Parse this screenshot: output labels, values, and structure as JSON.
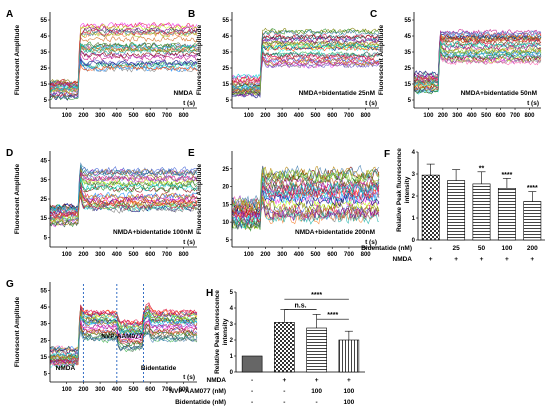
{
  "figure": {
    "panels": [
      {
        "id": "A",
        "type": "line",
        "letter": "A",
        "ylabel": "Fluorescent Amplitude",
        "xlabel": "t (s)",
        "annotation": "NMDA",
        "x_ticks": [
          "100",
          "200",
          "300",
          "400",
          "500",
          "600",
          "700",
          "800"
        ],
        "x_tick_values": [
          100,
          200,
          300,
          400,
          500,
          600,
          700,
          800
        ],
        "y_ticks": [
          "5",
          "15",
          "25",
          "35",
          "45",
          "55"
        ],
        "y_tick_values": [
          5,
          15,
          25,
          35,
          45,
          55
        ],
        "xlim": [
          0,
          880
        ],
        "ylim": [
          0,
          60
        ],
        "trace_count": 30,
        "baseline_range": [
          6,
          16
        ],
        "plateau_range": [
          22,
          52
        ],
        "step_time": 170,
        "peak_boost": 6
      },
      {
        "id": "B",
        "type": "line",
        "letter": "B",
        "ylabel": "Fluorescent Amplitude",
        "xlabel": "t (s)",
        "annotation": "NMDA+bidentatide 25nM",
        "x_ticks": [
          "100",
          "200",
          "300",
          "400",
          "500",
          "600",
          "700",
          "800"
        ],
        "x_tick_values": [
          100,
          200,
          300,
          400,
          500,
          600,
          700,
          800
        ],
        "y_ticks": [
          "5",
          "15",
          "25",
          "35",
          "45",
          "55"
        ],
        "y_tick_values": [
          5,
          15,
          25,
          35,
          45,
          55
        ],
        "xlim": [
          0,
          880
        ],
        "ylim": [
          0,
          60
        ],
        "trace_count": 30,
        "baseline_range": [
          8,
          20
        ],
        "plateau_range": [
          25,
          50
        ],
        "step_time": 170,
        "peak_boost": 6
      },
      {
        "id": "C",
        "type": "line",
        "letter": "C",
        "ylabel": "Fluorescent Amplitude",
        "xlabel": "t (s)",
        "annotation": "NMDA+bidentatide 50nM",
        "x_ticks": [
          "100",
          "200",
          "300",
          "400",
          "500",
          "600",
          "700",
          "800"
        ],
        "x_tick_values": [
          100,
          200,
          300,
          400,
          500,
          600,
          700,
          800
        ],
        "y_ticks": [
          "5",
          "15",
          "25",
          "35",
          "45",
          "55"
        ],
        "y_tick_values": [
          5,
          15,
          25,
          35,
          45,
          55
        ],
        "xlim": [
          0,
          880
        ],
        "ylim": [
          0,
          60
        ],
        "trace_count": 30,
        "baseline_range": [
          10,
          22
        ],
        "plateau_range": [
          28,
          48
        ],
        "step_time": 170,
        "peak_boost": 8
      },
      {
        "id": "D",
        "type": "line",
        "letter": "D",
        "ylabel": "Fluorescent Amplitude",
        "xlabel": "t (s)",
        "annotation": "NMDA+bidentatide 100nM",
        "x_ticks": [
          "100",
          "200",
          "300",
          "400",
          "500",
          "600",
          "700",
          "800"
        ],
        "x_tick_values": [
          100,
          200,
          300,
          400,
          500,
          600,
          700,
          800
        ],
        "y_ticks": [
          "5",
          "15",
          "25",
          "35",
          "45"
        ],
        "y_tick_values": [
          5,
          15,
          25,
          35,
          45
        ],
        "xlim": [
          0,
          880
        ],
        "ylim": [
          0,
          50
        ],
        "trace_count": 30,
        "baseline_range": [
          12,
          22
        ],
        "plateau_range": [
          18,
          40
        ],
        "step_time": 170,
        "peak_boost": 8
      },
      {
        "id": "E",
        "type": "line",
        "letter": "E",
        "ylabel": "Fluorescent Amplitude",
        "xlabel": "t (s)",
        "annotation": "NMDA+bidentatide 200nM",
        "x_ticks": [
          "100",
          "200",
          "300",
          "400",
          "500",
          "600",
          "700",
          "800"
        ],
        "x_tick_values": [
          100,
          200,
          300,
          400,
          500,
          600,
          700,
          800
        ],
        "y_ticks": [
          "5",
          "10",
          "15",
          "20",
          "25"
        ],
        "y_tick_values": [
          5,
          10,
          15,
          20,
          25
        ],
        "xlim": [
          0,
          880
        ],
        "ylim": [
          3,
          30
        ],
        "trace_count": 30,
        "baseline_range": [
          9,
          16
        ],
        "plateau_range": [
          11,
          24
        ],
        "step_time": 170,
        "peak_boost": 4
      },
      {
        "id": "G",
        "type": "line",
        "letter": "G",
        "ylabel": "Fluorescent Amplitude",
        "xlabel": "t (s)",
        "annotations": [
          "NMDA",
          "NVP-AAM077",
          "Bidentatide"
        ],
        "x_ticks": [
          "100",
          "200",
          "300",
          "400",
          "500",
          "600",
          "700",
          "800"
        ],
        "x_tick_values": [
          100,
          200,
          300,
          400,
          500,
          600,
          700,
          800
        ],
        "y_ticks": [
          "5",
          "15",
          "25",
          "35",
          "45",
          "55"
        ],
        "y_tick_values": [
          5,
          15,
          25,
          35,
          45,
          55
        ],
        "xlim": [
          0,
          880
        ],
        "ylim": [
          0,
          60
        ],
        "trace_count": 30,
        "baseline_range": [
          10,
          20
        ],
        "plateau_range": [
          25,
          42
        ],
        "step_time": 170,
        "peak_boost": 10,
        "dashed_lines_x": [
          200,
          400,
          560
        ]
      }
    ],
    "bar_F": {
      "letter": "F",
      "type": "bar",
      "ylabel": "Relative Peak fluorescence intensity",
      "y_ticks": [
        "0",
        "1",
        "2",
        "3",
        "4"
      ],
      "y_tick_values": [
        0,
        1,
        2,
        3,
        4
      ],
      "ylim": [
        0,
        4
      ],
      "categories": [
        "",
        "25",
        "50",
        "100",
        "200"
      ],
      "values": [
        2.95,
        2.7,
        2.55,
        2.35,
        1.75
      ],
      "errors": [
        0.5,
        0.5,
        0.55,
        0.45,
        0.45
      ],
      "patterns": [
        "checker",
        "hlines",
        "hlines",
        "hlines",
        "hlines"
      ],
      "significance": [
        "",
        "",
        "**",
        "****",
        "****"
      ],
      "row1_label": "Bidentatide (nM)",
      "row2_label": "NMDA",
      "row1_values": [
        "-",
        "25",
        "50",
        "100",
        "200"
      ],
      "row2_values": [
        "+",
        "+",
        "+",
        "+",
        "+"
      ]
    },
    "bar_H": {
      "letter": "H",
      "type": "bar",
      "ylabel": "Relative Peak fluorescence intensity",
      "y_ticks": [
        "0",
        "1",
        "2",
        "3",
        "4",
        "5"
      ],
      "y_tick_values": [
        0,
        1,
        2,
        3,
        4,
        5
      ],
      "ylim": [
        0,
        5
      ],
      "values": [
        1.0,
        3.1,
        2.75,
        2.0
      ],
      "errors": [
        0,
        0.8,
        0.85,
        0.55
      ],
      "patterns": [
        "solid",
        "checker",
        "hlines",
        "vlines"
      ],
      "row_labels": [
        "NMDA",
        "NVP-AAM077 (nM)",
        "Bidentatide (nM)"
      ],
      "rows": [
        [
          "-",
          "+",
          "+",
          "+"
        ],
        [
          "-",
          "-",
          "100",
          "100"
        ],
        [
          "-",
          "-",
          "-",
          "100"
        ]
      ],
      "brackets": [
        {
          "from": 1,
          "to": 2,
          "label": "n.s.",
          "level": 3.9
        },
        {
          "from": 1,
          "to": 3,
          "label": "****",
          "level": 4.55
        },
        {
          "from": 2,
          "to": 3,
          "label": "****",
          "level": 3.3
        }
      ]
    }
  }
}
